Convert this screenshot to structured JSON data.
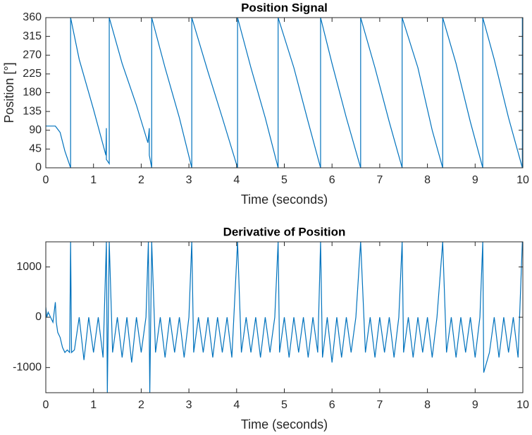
{
  "chart_data": [
    {
      "type": "line",
      "title": "Position Signal",
      "x_label": "Time (seconds)",
      "y_label": "Position [°]",
      "xlim": [
        0,
        10
      ],
      "ylim": [
        0,
        360
      ],
      "xticks": [
        0,
        1,
        2,
        3,
        4,
        5,
        6,
        7,
        8,
        9,
        10
      ],
      "yticks": [
        0,
        45,
        90,
        135,
        180,
        225,
        270,
        315,
        360
      ],
      "series": [
        {
          "color": "#0072bd",
          "x": [
            0,
            0.2,
            0.3,
            0.4,
            0.52,
            0.52,
            0.7,
            1.0,
            1.26,
            1.27,
            1.27,
            1.33,
            1.33,
            1.6,
            1.9,
            2.14,
            2.17,
            2.17,
            2.22,
            2.22,
            2.5,
            2.8,
            3.06,
            3.06,
            3.4,
            3.7,
            4.02,
            4.02,
            4.3,
            4.6,
            4.87,
            4.87,
            5.2,
            5.5,
            5.76,
            5.76,
            6.0,
            6.3,
            6.6,
            6.6,
            6.9,
            7.2,
            7.47,
            7.47,
            7.8,
            8.1,
            8.32,
            8.32,
            8.6,
            8.9,
            9.16,
            9.16,
            9.4,
            9.7,
            9.99,
            9.99
          ],
          "values": [
            100,
            100,
            85,
            40,
            0,
            360,
            260,
            140,
            30,
            95,
            20,
            10,
            360,
            250,
            150,
            60,
            95,
            30,
            0,
            360,
            240,
            120,
            0,
            360,
            230,
            120,
            0,
            360,
            240,
            120,
            0,
            360,
            240,
            110,
            0,
            360,
            250,
            120,
            0,
            360,
            240,
            110,
            0,
            360,
            240,
            90,
            0,
            360,
            250,
            110,
            0,
            360,
            260,
            120,
            0,
            360
          ]
        }
      ]
    },
    {
      "type": "line",
      "title": "Derivative of Position",
      "x_label": "Time (seconds)",
      "xlim": [
        0,
        10
      ],
      "ylim": [
        -1500,
        1500
      ],
      "xticks": [
        0,
        1,
        2,
        3,
        4,
        5,
        6,
        7,
        8,
        9,
        10
      ],
      "yticks": [
        -1000,
        0,
        1000
      ],
      "series": [
        {
          "color": "#0072bd",
          "x": [
            0,
            0.02,
            0.05,
            0.1,
            0.15,
            0.2,
            0.22,
            0.25,
            0.3,
            0.35,
            0.4,
            0.45,
            0.5,
            0.52,
            0.54,
            0.6,
            0.7,
            0.8,
            0.9,
            1.0,
            1.1,
            1.2,
            1.27,
            1.29,
            1.33,
            1.4,
            1.5,
            1.6,
            1.7,
            1.8,
            1.9,
            2.0,
            2.1,
            2.15,
            2.18,
            2.22,
            2.3,
            2.4,
            2.5,
            2.6,
            2.7,
            2.8,
            2.9,
            3.0,
            3.06,
            3.1,
            3.2,
            3.3,
            3.4,
            3.5,
            3.6,
            3.7,
            3.8,
            3.9,
            4.02,
            4.1,
            4.2,
            4.3,
            4.4,
            4.5,
            4.6,
            4.7,
            4.8,
            4.87,
            4.9,
            5.0,
            5.1,
            5.2,
            5.3,
            5.4,
            5.5,
            5.6,
            5.7,
            5.76,
            5.8,
            5.9,
            6.0,
            6.1,
            6.2,
            6.3,
            6.4,
            6.5,
            6.6,
            6.7,
            6.8,
            6.9,
            7.0,
            7.1,
            7.2,
            7.3,
            7.4,
            7.47,
            7.5,
            7.6,
            7.7,
            7.8,
            7.9,
            8.0,
            8.1,
            8.2,
            8.32,
            8.4,
            8.5,
            8.6,
            8.7,
            8.8,
            8.9,
            9.0,
            9.1,
            9.16,
            9.18,
            9.3,
            9.4,
            9.5,
            9.6,
            9.7,
            9.8,
            9.9,
            9.99
          ],
          "values": [
            200,
            0,
            100,
            0,
            -100,
            300,
            -100,
            -300,
            -400,
            -600,
            -700,
            -650,
            -700,
            1500,
            -700,
            -650,
            0,
            -850,
            0,
            -700,
            0,
            -800,
            1500,
            -1500,
            1500,
            -700,
            0,
            -800,
            0,
            -900,
            0,
            -700,
            0,
            1500,
            -1500,
            1500,
            -700,
            0,
            -800,
            0,
            -700,
            0,
            -800,
            0,
            1500,
            -700,
            0,
            -700,
            0,
            -800,
            0,
            -700,
            0,
            -800,
            1500,
            -700,
            0,
            -700,
            0,
            -800,
            0,
            -700,
            0,
            1500,
            -700,
            0,
            -800,
            0,
            -700,
            0,
            -800,
            0,
            -700,
            1500,
            -800,
            0,
            -900,
            0,
            -800,
            0,
            -700,
            0,
            1500,
            -700,
            0,
            -800,
            0,
            -700,
            0,
            -800,
            0,
            1500,
            -700,
            0,
            -800,
            0,
            -700,
            0,
            -800,
            0,
            1500,
            -700,
            0,
            -800,
            0,
            -700,
            0,
            -800,
            0,
            1500,
            -1100,
            -700,
            0,
            -800,
            0,
            -700,
            0,
            -800,
            1500
          ]
        }
      ]
    }
  ]
}
